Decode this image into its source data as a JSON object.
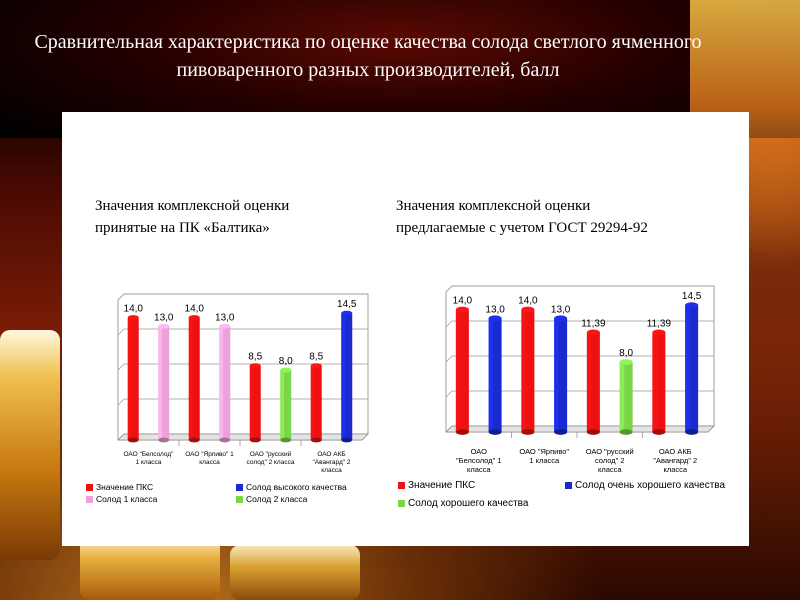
{
  "title": "Сравнительная характеристика по оценке качества солода светлого ячменного пивоваренного разных производителей, балл",
  "colors": {
    "red": "#ee1111",
    "pink": "#f0a0d8",
    "blue": "#1a2ad0",
    "green": "#7cd64a"
  },
  "caption_left": [
    "Значения комплексной оценки",
    "принятые на ПК «Балтика»"
  ],
  "caption_right": [
    "Значения комплексной оценки",
    "предлагаемые с учетом ГОСТ 29294-92"
  ],
  "chart_data": [
    {
      "type": "bar",
      "categories": [
        [
          "ОАО \"Белсолод\"",
          "1 класса"
        ],
        [
          "ОАО \"Ярпиво\" 1",
          "класса"
        ],
        [
          "ОАО \"русский",
          "солод\" 2 класса"
        ],
        [
          "ОАО АКБ",
          "\"Авангард\" 2",
          "класса"
        ]
      ],
      "ylim": [
        0,
        16
      ],
      "series": [
        {
          "name": "Значение ПКС",
          "color": "#ee1111",
          "values": [
            14.0,
            14.0,
            8.5,
            8.5
          ],
          "labels": [
            "14,0",
            "14,0",
            "8,5",
            "8,5"
          ]
        },
        {
          "name": "Солод 1 класса",
          "color": "#f0a0d8",
          "values": [
            13.0,
            13.0,
            null,
            null
          ],
          "labels": [
            "13,0",
            "13,0",
            "",
            ""
          ]
        },
        {
          "name": "Солод высокого качества",
          "color": "#1a2ad0",
          "values": [
            null,
            null,
            null,
            14.5
          ],
          "labels": [
            "",
            "",
            "",
            "14,5"
          ]
        },
        {
          "name": "Солод 2 класса",
          "color": "#7cd64a",
          "values": [
            null,
            null,
            8.0,
            null
          ],
          "labels": [
            "",
            "",
            "8,0",
            ""
          ]
        }
      ],
      "legend": [
        "Значение ПКС",
        "Солод высокого качества",
        "Солод 1 класса",
        "Солод 2 класса"
      ]
    },
    {
      "type": "bar",
      "categories": [
        [
          "ОАО",
          "\"Белсолод\" 1",
          "класса"
        ],
        [
          "ОАО \"Ярпиво\"",
          "1 класса"
        ],
        [
          "ОАО \"русский",
          "солод\" 2",
          "класса"
        ],
        [
          "ОАО АКБ",
          "\"Авангард\" 2",
          "класса"
        ]
      ],
      "ylim": [
        0,
        16
      ],
      "series": [
        {
          "name": "Значение ПКС",
          "color": "#ee1111",
          "values": [
            14.0,
            14.0,
            11.39,
            11.39
          ],
          "labels": [
            "14,0",
            "14,0",
            "11,39",
            "11,39"
          ]
        },
        {
          "name": "Солод очень хорошего качества",
          "color": "#1a2ad0",
          "values": [
            13.0,
            13.0,
            null,
            14.5
          ],
          "labels": [
            "13,0",
            "13,0",
            "",
            "14,5"
          ]
        },
        {
          "name": "Солод хорошего качества",
          "color": "#7cd64a",
          "values": [
            null,
            null,
            8.0,
            null
          ],
          "labels": [
            "",
            "",
            "8,0",
            ""
          ]
        }
      ],
      "legend": [
        "Значение ПКС",
        "Солод очень хорошего качества",
        "Солод хорошего качества"
      ]
    }
  ]
}
